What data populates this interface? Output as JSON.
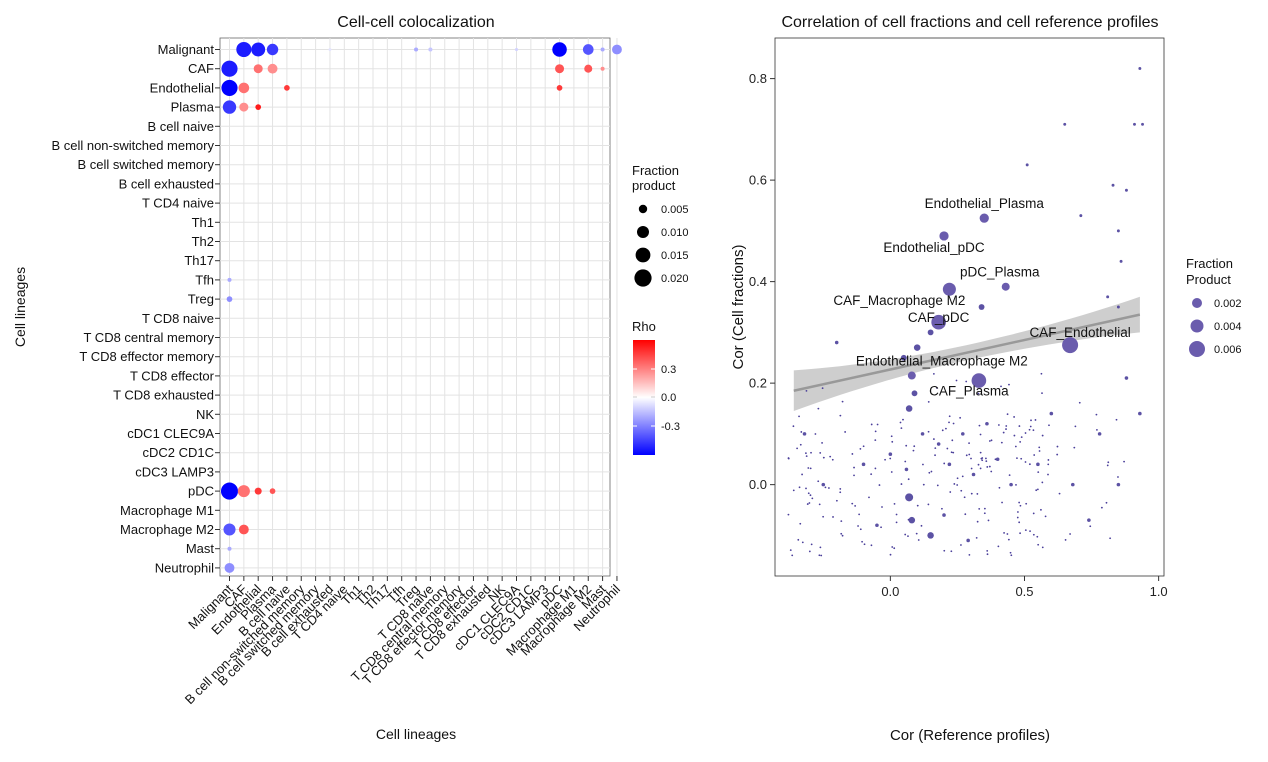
{
  "charts": {
    "left": {
      "title": "Cell-cell colocalization",
      "xlabel": "Cell lineages",
      "ylabel": "Cell lineages",
      "size_legend": {
        "title_line1": "Fraction",
        "title_line2": "product",
        "labels": [
          "0.005",
          "0.010",
          "0.015",
          "0.020"
        ]
      },
      "color_legend": {
        "title": "Rho",
        "labels": [
          "0.3",
          "0.0",
          "-0.3"
        ]
      }
    },
    "right": {
      "title": "Correlation of cell fractions and cell reference profiles",
      "xlabel": "Cor (Reference profiles)",
      "ylabel": "Cor (Cell fractions)",
      "xticks": [
        "0.0",
        "0.5",
        "1.0"
      ],
      "yticks": [
        "0.0",
        "0.2",
        "0.4",
        "0.6",
        "0.8"
      ],
      "size_legend": {
        "title_line1": "Fraction",
        "title_line2": "Product",
        "labels": [
          "0.002",
          "0.004",
          "0.006"
        ]
      }
    }
  },
  "chart_data": [
    {
      "type": "heatmap",
      "title": "Cell-cell colocalization",
      "xlabel": "Cell lineages",
      "ylabel": "Cell lineages",
      "categories": [
        "Malignant",
        "CAF",
        "Endothelial",
        "Plasma",
        "B cell naive",
        "B cell non-switched memory",
        "B cell switched memory",
        "B cell exhausted",
        "T CD4 naive",
        "Th1",
        "Th2",
        "Th17",
        "Tfh",
        "Treg",
        "T CD8 naive",
        "T CD8 central memory",
        "T CD8 effector memory",
        "T CD8 effector",
        "T CD8 exhausted",
        "NK",
        "cDC1 CLEC9A",
        "cDC2 CD1C",
        "cDC3 LAMP3",
        "pDC",
        "Macrophage M1",
        "Macrophage M2",
        "Mast",
        "Neutrophil"
      ],
      "cells": [
        {
          "row": "Malignant",
          "col": "CAF",
          "rho": -0.4,
          "fraction_product": 0.014
        },
        {
          "row": "Malignant",
          "col": "Endothelial",
          "rho": -0.4,
          "fraction_product": 0.012
        },
        {
          "row": "Malignant",
          "col": "Plasma",
          "rho": -0.35,
          "fraction_product": 0.008
        },
        {
          "row": "Malignant",
          "col": "B cell exhausted",
          "rho": -0.05,
          "fraction_product": 0.0005
        },
        {
          "row": "Malignant",
          "col": "Treg",
          "rho": -0.15,
          "fraction_product": 0.001
        },
        {
          "row": "Malignant",
          "col": "T CD8 naive",
          "rho": -0.1,
          "fraction_product": 0.001
        },
        {
          "row": "Malignant",
          "col": "cDC1 CLEC9A",
          "rho": -0.08,
          "fraction_product": 0.0006
        },
        {
          "row": "Malignant",
          "col": "pDC",
          "rho": -0.45,
          "fraction_product": 0.013
        },
        {
          "row": "Malignant",
          "col": "Macrophage M2",
          "rho": -0.3,
          "fraction_product": 0.007
        },
        {
          "row": "Malignant",
          "col": "Mast",
          "rho": -0.15,
          "fraction_product": 0.001
        },
        {
          "row": "Malignant",
          "col": "Neutrophil",
          "rho": -0.2,
          "fraction_product": 0.006
        },
        {
          "row": "CAF",
          "col": "Malignant",
          "rho": -0.4,
          "fraction_product": 0.016
        },
        {
          "row": "CAF",
          "col": "Plasma",
          "rho": 0.2,
          "fraction_product": 0.006
        },
        {
          "row": "CAF",
          "col": "Endothelial",
          "rho": 0.25,
          "fraction_product": 0.005
        },
        {
          "row": "CAF",
          "col": "pDC",
          "rho": 0.3,
          "fraction_product": 0.005
        },
        {
          "row": "CAF",
          "col": "Macrophage M2",
          "rho": 0.3,
          "fraction_product": 0.004
        },
        {
          "row": "CAF",
          "col": "Mast",
          "rho": 0.2,
          "fraction_product": 0.001
        },
        {
          "row": "Endothelial",
          "col": "Malignant",
          "rho": -0.45,
          "fraction_product": 0.016
        },
        {
          "row": "Endothelial",
          "col": "CAF",
          "rho": 0.25,
          "fraction_product": 0.007
        },
        {
          "row": "Endothelial",
          "col": "B cell naive",
          "rho": 0.35,
          "fraction_product": 0.002
        },
        {
          "row": "Endothelial",
          "col": "pDC",
          "rho": 0.35,
          "fraction_product": 0.002
        },
        {
          "row": "Plasma",
          "col": "Malignant",
          "rho": -0.35,
          "fraction_product": 0.011
        },
        {
          "row": "Plasma",
          "col": "CAF",
          "rho": 0.2,
          "fraction_product": 0.005
        },
        {
          "row": "Plasma",
          "col": "Endothelial",
          "rho": 0.4,
          "fraction_product": 0.002
        },
        {
          "row": "pDC",
          "col": "Malignant",
          "rho": -0.45,
          "fraction_product": 0.018
        },
        {
          "row": "pDC",
          "col": "CAF",
          "rho": 0.25,
          "fraction_product": 0.009
        },
        {
          "row": "pDC",
          "col": "Endothelial",
          "rho": 0.35,
          "fraction_product": 0.003
        },
        {
          "row": "pDC",
          "col": "Plasma",
          "rho": 0.3,
          "fraction_product": 0.002
        },
        {
          "row": "Macrophage M2",
          "col": "Malignant",
          "rho": -0.3,
          "fraction_product": 0.009
        },
        {
          "row": "Macrophage M2",
          "col": "CAF",
          "rho": 0.3,
          "fraction_product": 0.006
        },
        {
          "row": "Treg",
          "col": "Malignant",
          "rho": -0.2,
          "fraction_product": 0.002
        },
        {
          "row": "Tfh",
          "col": "Malignant",
          "rho": -0.15,
          "fraction_product": 0.001
        },
        {
          "row": "Mast",
          "col": "Malignant",
          "rho": -0.15,
          "fraction_product": 0.001
        },
        {
          "row": "Neutrophil",
          "col": "Malignant",
          "rho": -0.2,
          "fraction_product": 0.006
        }
      ]
    },
    {
      "type": "scatter",
      "title": "Correlation of cell fractions and cell reference profiles",
      "xlabel": "Cor (Reference profiles)",
      "ylabel": "Cor (Cell fractions)",
      "xlim": [
        -0.43,
        1.02
      ],
      "ylim": [
        -0.18,
        0.88
      ],
      "trend": {
        "x": [
          -0.36,
          0.93
        ],
        "y": [
          0.185,
          0.335
        ],
        "ci_half_width_at_ends": [
          0.04,
          0.035
        ],
        "ci_half_width_at_middle": 0.015
      },
      "labeled_points": [
        {
          "label": "Endothelial_Plasma",
          "x": 0.35,
          "y": 0.525,
          "fraction_product": 0.002
        },
        {
          "label": "Endothelial_pDC",
          "x": 0.2,
          "y": 0.49,
          "fraction_product": 0.002
        },
        {
          "label": "pDC_Plasma",
          "x": 0.43,
          "y": 0.39,
          "fraction_product": 0.0015
        },
        {
          "label": "CAF_Macrophage M2",
          "x": 0.22,
          "y": 0.385,
          "fraction_product": 0.004
        },
        {
          "label": "CAF_pDC",
          "x": 0.18,
          "y": 0.32,
          "fraction_product": 0.005
        },
        {
          "label": "CAF_Endothelial",
          "x": 0.67,
          "y": 0.275,
          "fraction_product": 0.006
        },
        {
          "label": "Endothelial_Macrophage M2",
          "x": 0.08,
          "y": 0.215,
          "fraction_product": 0.0015
        },
        {
          "label": "CAF_Plasma",
          "x": 0.33,
          "y": 0.205,
          "fraction_product": 0.005
        }
      ],
      "points": [
        {
          "x": 0.93,
          "y": 0.82,
          "fraction_product": 0.0002
        },
        {
          "x": 0.65,
          "y": 0.71,
          "fraction_product": 0.0002
        },
        {
          "x": 0.91,
          "y": 0.71,
          "fraction_product": 0.0002
        },
        {
          "x": 0.94,
          "y": 0.71,
          "fraction_product": 0.0002
        },
        {
          "x": 0.51,
          "y": 0.63,
          "fraction_product": 0.0002
        },
        {
          "x": 0.83,
          "y": 0.59,
          "fraction_product": 0.0002
        },
        {
          "x": 0.88,
          "y": 0.58,
          "fraction_product": 0.0002
        },
        {
          "x": 0.71,
          "y": 0.53,
          "fraction_product": 0.0002
        },
        {
          "x": 0.85,
          "y": 0.5,
          "fraction_product": 0.0002
        },
        {
          "x": 0.86,
          "y": 0.44,
          "fraction_product": 0.0002
        },
        {
          "x": 0.81,
          "y": 0.37,
          "fraction_product": 0.0002
        },
        {
          "x": 0.85,
          "y": 0.35,
          "fraction_product": 0.0002
        },
        {
          "x": 0.34,
          "y": 0.35,
          "fraction_product": 0.0008
        },
        {
          "x": 0.15,
          "y": 0.3,
          "fraction_product": 0.0008
        },
        {
          "x": 0.1,
          "y": 0.27,
          "fraction_product": 0.001
        },
        {
          "x": 0.05,
          "y": 0.25,
          "fraction_product": 0.0008
        },
        {
          "x": 0.09,
          "y": 0.18,
          "fraction_product": 0.0008
        },
        {
          "x": 0.07,
          "y": 0.15,
          "fraction_product": 0.001
        },
        {
          "x": 0.07,
          "y": -0.025,
          "fraction_product": 0.0015
        },
        {
          "x": 0.08,
          "y": -0.07,
          "fraction_product": 0.001
        },
        {
          "x": 0.15,
          "y": -0.1,
          "fraction_product": 0.001
        },
        {
          "x": 0.06,
          "y": 0.03,
          "fraction_product": 0.0003
        },
        {
          "x": 0.18,
          "y": 0.08,
          "fraction_product": 0.0003
        },
        {
          "x": 0.22,
          "y": 0.04,
          "fraction_product": 0.0003
        },
        {
          "x": 0.31,
          "y": 0.02,
          "fraction_product": 0.0003
        },
        {
          "x": 0.27,
          "y": 0.1,
          "fraction_product": 0.0003
        },
        {
          "x": 0.4,
          "y": 0.05,
          "fraction_product": 0.0003
        },
        {
          "x": 0.45,
          "y": 0.0,
          "fraction_product": 0.0003
        },
        {
          "x": 0.55,
          "y": 0.04,
          "fraction_product": 0.0003
        },
        {
          "x": 0.68,
          "y": 0.0,
          "fraction_product": 0.0003
        },
        {
          "x": 0.74,
          "y": -0.07,
          "fraction_product": 0.0003
        },
        {
          "x": 0.85,
          "y": 0.0,
          "fraction_product": 0.0003
        },
        {
          "x": -0.32,
          "y": 0.1,
          "fraction_product": 0.0003
        },
        {
          "x": -0.25,
          "y": 0.0,
          "fraction_product": 0.0003
        },
        {
          "x": -0.2,
          "y": 0.28,
          "fraction_product": 0.0003
        },
        {
          "x": -0.1,
          "y": 0.04,
          "fraction_product": 0.0003
        },
        {
          "x": -0.05,
          "y": -0.08,
          "fraction_product": 0.0003
        },
        {
          "x": 0.0,
          "y": 0.06,
          "fraction_product": 0.0003
        },
        {
          "x": 0.12,
          "y": 0.1,
          "fraction_product": 0.0003
        },
        {
          "x": 0.2,
          "y": -0.06,
          "fraction_product": 0.0003
        },
        {
          "x": 0.29,
          "y": -0.11,
          "fraction_product": 0.0003
        },
        {
          "x": 0.36,
          "y": 0.12,
          "fraction_product": 0.0003
        },
        {
          "x": 0.6,
          "y": 0.14,
          "fraction_product": 0.0003
        },
        {
          "x": 0.78,
          "y": 0.1,
          "fraction_product": 0.0003
        },
        {
          "x": 0.93,
          "y": 0.14,
          "fraction_product": 0.0003
        },
        {
          "x": 0.88,
          "y": 0.21,
          "fraction_product": 0.0003
        }
      ]
    }
  ]
}
